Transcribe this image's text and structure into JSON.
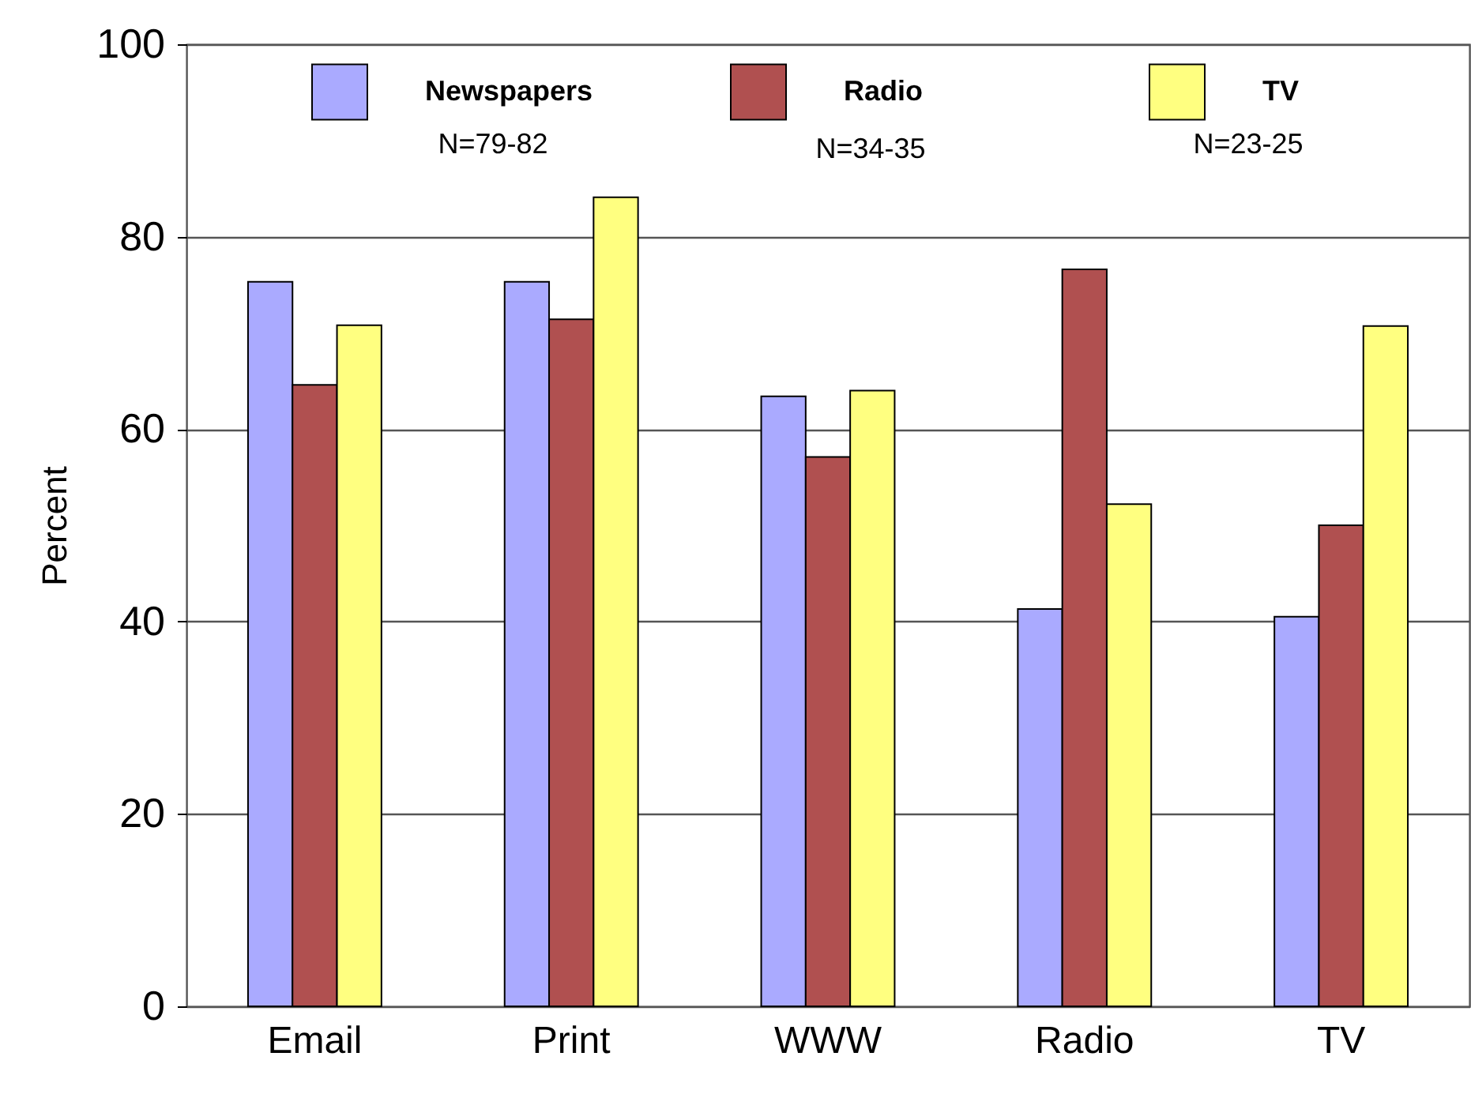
{
  "chart_data": {
    "type": "bar",
    "ylabel": "Percent",
    "categories": [
      "Email",
      "Print",
      "WWW",
      "Radio",
      "TV"
    ],
    "series": [
      {
        "name": "Newspapers",
        "color": "#aaaaff",
        "values": [
          75.3,
          75.3,
          63.4,
          41.3,
          40.5
        ]
      },
      {
        "name": "Radio",
        "color": "#b05050",
        "values": [
          64.6,
          71.4,
          57.1,
          76.6,
          50.0
        ]
      },
      {
        "name": "TV",
        "color": "#ffff80",
        "values": [
          70.8,
          84.1,
          64.0,
          52.2,
          70.7
        ]
      }
    ],
    "annotations": [
      "N=79-82",
      "N=34-35",
      "N=23-25"
    ],
    "ylim": [
      0,
      100
    ],
    "yticks": [
      0,
      20,
      40,
      60,
      80,
      100
    ],
    "grid": "y",
    "legend": "top"
  }
}
